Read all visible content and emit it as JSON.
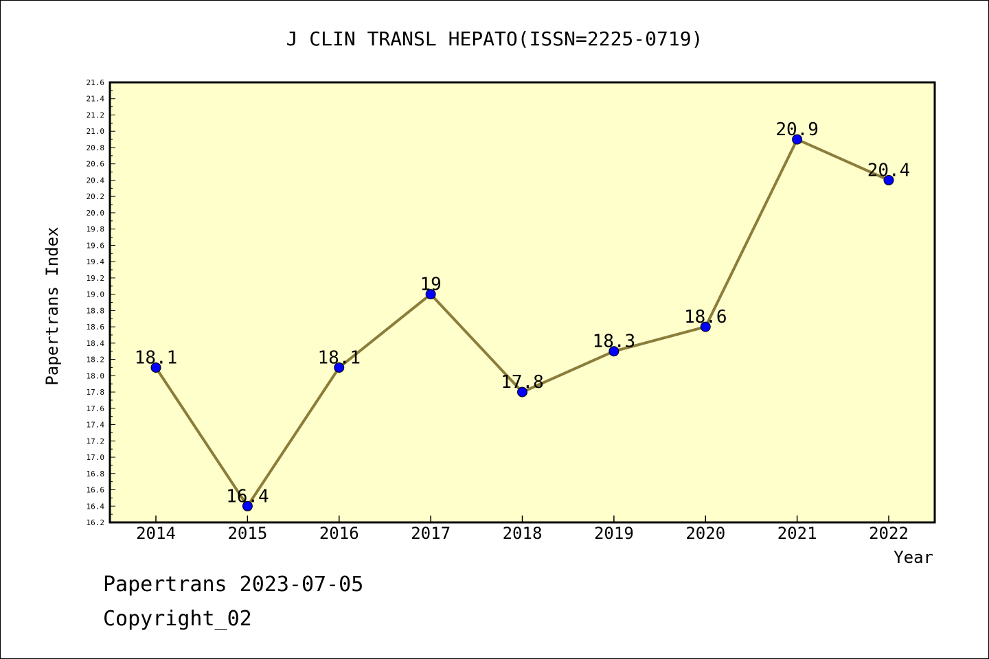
{
  "chart_data": {
    "type": "line",
    "title": "J CLIN TRANSL HEPATO(ISSN=2225-0719)",
    "xlabel": "Year",
    "ylabel": "Papertrans Index",
    "categories": [
      "2014",
      "2015",
      "2016",
      "2017",
      "2018",
      "2019",
      "2020",
      "2021",
      "2022"
    ],
    "values": [
      18.1,
      16.4,
      18.1,
      19,
      17.8,
      18.3,
      18.6,
      20.9,
      20.4
    ],
    "data_labels": [
      "18.1",
      "16.4",
      "18.1",
      "19",
      "17.8",
      "18.3",
      "18.6",
      "20.9",
      "20.4"
    ],
    "ylim": [
      16.2,
      21.6
    ],
    "yticks": [
      "16.2",
      "16.4",
      "16.6",
      "16.8",
      "17.0",
      "17.2",
      "17.4",
      "17.6",
      "17.8",
      "18.0",
      "18.2",
      "18.4",
      "18.6",
      "18.8",
      "19.0",
      "19.2",
      "19.4",
      "19.6",
      "19.8",
      "20.0",
      "20.2",
      "20.4",
      "20.6",
      "20.8",
      "21.0",
      "21.2",
      "21.4",
      "21.6"
    ],
    "grid": false,
    "colors": {
      "plot_background": "#ffffcc",
      "line": "#8b7d3a",
      "marker": "#0000ff"
    }
  },
  "footer": {
    "line1": "Papertrans 2023-07-05",
    "line2": "Copyright_02"
  }
}
